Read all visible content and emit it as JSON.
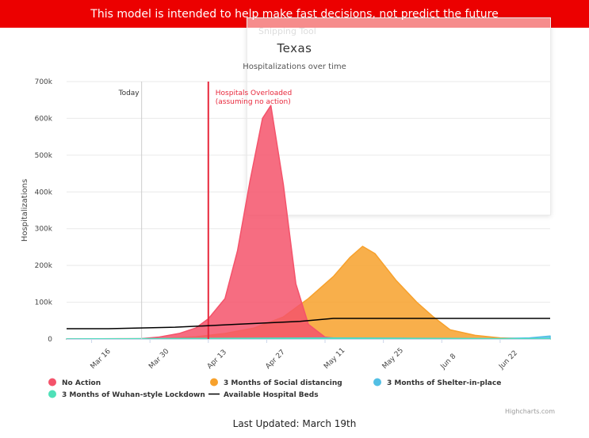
{
  "banner": {
    "text": "This model is intended to help make fast decisions, not predict the future"
  },
  "overlay": {
    "faded_text": "Snipping Tool"
  },
  "footer": {
    "last_updated": "Last Updated: March 19th"
  },
  "credit": "Highcharts.com",
  "chart_data": {
    "type": "area",
    "title": "Texas",
    "subtitle": "Hospitalizations over time",
    "ylabel": "Hospitalizations",
    "xlabel": "",
    "ylim": [
      0,
      700000
    ],
    "y_ticks": [
      {
        "value": 0,
        "label": "0"
      },
      {
        "value": 100000,
        "label": "100k"
      },
      {
        "value": 200000,
        "label": "200k"
      },
      {
        "value": 300000,
        "label": "300k"
      },
      {
        "value": 400000,
        "label": "400k"
      },
      {
        "value": 500000,
        "label": "500k"
      },
      {
        "value": 600000,
        "label": "600k"
      },
      {
        "value": 700000,
        "label": "700k"
      }
    ],
    "x_range": [
      "2020-03-10",
      "2020-07-04"
    ],
    "x_ticks": [
      {
        "date": "2020-03-16",
        "label": "Mar 16"
      },
      {
        "date": "2020-03-30",
        "label": "Mar 30"
      },
      {
        "date": "2020-04-13",
        "label": "Apr 13"
      },
      {
        "date": "2020-04-27",
        "label": "Apr 27"
      },
      {
        "date": "2020-05-11",
        "label": "May 11"
      },
      {
        "date": "2020-05-25",
        "label": "May 25"
      },
      {
        "date": "2020-06-08",
        "label": "Jun 8"
      },
      {
        "date": "2020-06-22",
        "label": "Jun 22"
      }
    ],
    "grid": true,
    "legend_position": "bottom-left",
    "annotations": [
      {
        "date": "2020-03-28",
        "lines": [
          "Today"
        ],
        "color": "#cccccc",
        "text_color": "#333333",
        "style": "today"
      },
      {
        "date": "2020-04-13",
        "lines": [
          "Hospitals Overloaded",
          "(assuming no action)"
        ],
        "color": "#e8283c",
        "text_color": "#e8283c",
        "style": "overload"
      }
    ],
    "series": [
      {
        "name": "3 Months of Social distancing",
        "kind": "area",
        "color": "#f7a12c",
        "points": [
          [
            "2020-03-10",
            0
          ],
          [
            "2020-03-30",
            0
          ],
          [
            "2020-04-10",
            6000
          ],
          [
            "2020-04-17",
            15000
          ],
          [
            "2020-04-24",
            30000
          ],
          [
            "2020-05-01",
            60000
          ],
          [
            "2020-05-07",
            110000
          ],
          [
            "2020-05-13",
            170000
          ],
          [
            "2020-05-17",
            222000
          ],
          [
            "2020-05-20",
            252000
          ],
          [
            "2020-05-23",
            232000
          ],
          [
            "2020-05-28",
            160000
          ],
          [
            "2020-06-02",
            100000
          ],
          [
            "2020-06-06",
            60000
          ],
          [
            "2020-06-10",
            25000
          ],
          [
            "2020-06-16",
            10000
          ],
          [
            "2020-06-22",
            3000
          ],
          [
            "2020-07-04",
            0
          ]
        ]
      },
      {
        "name": "No Action",
        "kind": "area",
        "color": "#f4536b",
        "points": [
          [
            "2020-03-10",
            0
          ],
          [
            "2020-03-28",
            1000
          ],
          [
            "2020-04-01",
            5000
          ],
          [
            "2020-04-06",
            15000
          ],
          [
            "2020-04-10",
            30000
          ],
          [
            "2020-04-13",
            55000
          ],
          [
            "2020-04-17",
            110000
          ],
          [
            "2020-04-20",
            240000
          ],
          [
            "2020-04-23",
            430000
          ],
          [
            "2020-04-26",
            600000
          ],
          [
            "2020-04-28",
            635000
          ],
          [
            "2020-05-01",
            420000
          ],
          [
            "2020-05-04",
            150000
          ],
          [
            "2020-05-07",
            40000
          ],
          [
            "2020-05-11",
            5000
          ],
          [
            "2020-05-15",
            0
          ],
          [
            "2020-07-04",
            0
          ]
        ]
      },
      {
        "name": "3 Months of Shelter-in-place",
        "kind": "area",
        "color": "#52bfe4",
        "points": [
          [
            "2020-03-10",
            0
          ],
          [
            "2020-05-11",
            3000
          ],
          [
            "2020-06-01",
            2000
          ],
          [
            "2020-06-22",
            1000
          ],
          [
            "2020-06-29",
            3000
          ],
          [
            "2020-07-04",
            8000
          ]
        ]
      },
      {
        "name": "3 Months of Wuhan-style Lockdown",
        "kind": "area",
        "color": "#4fe0b8",
        "points": [
          [
            "2020-03-10",
            0
          ],
          [
            "2020-05-01",
            2000
          ],
          [
            "2020-06-01",
            1000
          ],
          [
            "2020-07-04",
            500
          ]
        ]
      },
      {
        "name": "Available Hospital Beds",
        "kind": "line",
        "color": "#000000",
        "points": [
          [
            "2020-03-10",
            28000
          ],
          [
            "2020-03-20",
            28000
          ],
          [
            "2020-04-05",
            32000
          ],
          [
            "2020-04-20",
            40000
          ],
          [
            "2020-05-05",
            48000
          ],
          [
            "2020-05-13",
            56000
          ],
          [
            "2020-05-20",
            56000
          ],
          [
            "2020-07-04",
            56000
          ]
        ]
      }
    ],
    "legend": [
      {
        "name": "No Action",
        "symbol": "dot",
        "color": "#f4536b"
      },
      {
        "name": "3 Months of Social distancing",
        "symbol": "dot",
        "color": "#f7a12c"
      },
      {
        "name": "3 Months of Shelter-in-place",
        "symbol": "dot",
        "color": "#52bfe4"
      },
      {
        "name": "3 Months of Wuhan-style Lockdown",
        "symbol": "dot",
        "color": "#4fe0b8"
      },
      {
        "name": "Available Hospital Beds",
        "symbol": "line",
        "color": "#000000"
      }
    ]
  }
}
